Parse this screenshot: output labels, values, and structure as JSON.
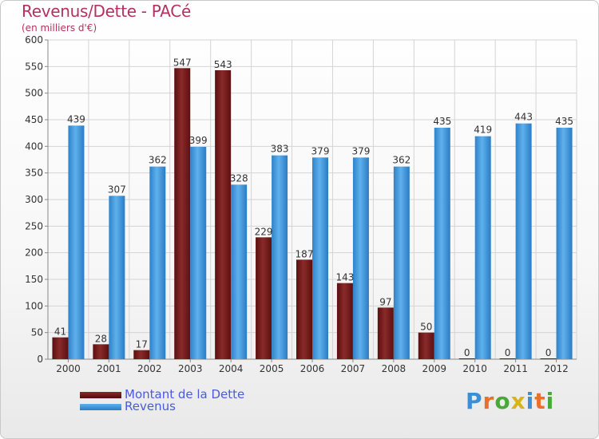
{
  "header": {
    "title": "Revenus/Dette - PACé",
    "subtitle": "(en milliers d'€)"
  },
  "legend": {
    "debt_label": "Montant de la Dette",
    "revenue_label": "Revenus"
  },
  "logo": {
    "text": "Proxiti"
  },
  "colors": {
    "debt": "#7a1c1c",
    "revenue": "#3a93d8",
    "title": "#b5305f"
  },
  "chart_data": {
    "type": "bar",
    "title": "Revenus/Dette - PACé",
    "subtitle": "(en milliers d'€)",
    "categories": [
      "2000",
      "2001",
      "2002",
      "2003",
      "2004",
      "2005",
      "2006",
      "2007",
      "2008",
      "2009",
      "2010",
      "2011",
      "2012"
    ],
    "series": [
      {
        "name": "Montant de la Dette",
        "values": [
          41,
          28,
          17,
          547,
          543,
          229,
          187,
          143,
          97,
          50,
          0,
          0,
          0
        ]
      },
      {
        "name": "Revenus",
        "values": [
          439,
          307,
          362,
          399,
          328,
          383,
          379,
          379,
          362,
          435,
          419,
          443,
          435
        ]
      }
    ],
    "ylim": [
      0,
      600
    ],
    "yticks": [
      0,
      50,
      100,
      150,
      200,
      250,
      300,
      350,
      400,
      450,
      500,
      550,
      600
    ],
    "grid": true,
    "legend_position": "bottom-left"
  }
}
